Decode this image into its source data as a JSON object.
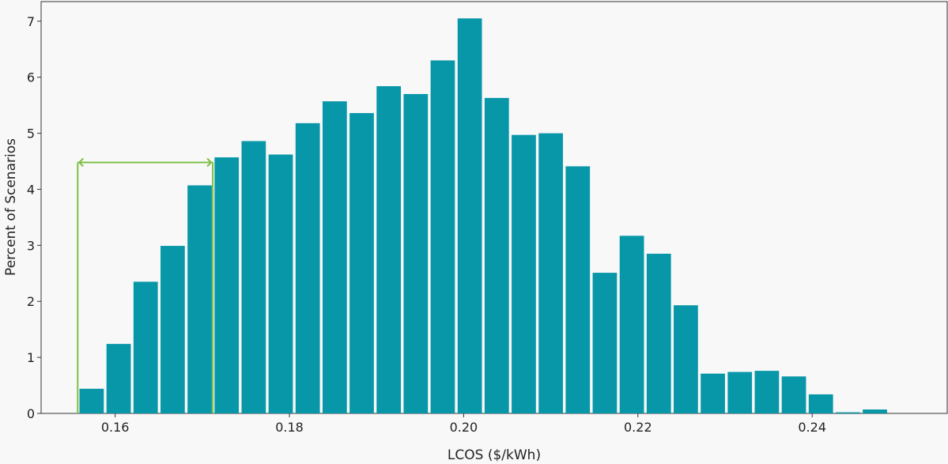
{
  "chart_data": {
    "type": "bar",
    "title": "",
    "xlabel": "LCOS ($/kWh)",
    "ylabel": "Percent of Scenarios",
    "xlim": [
      0.1515,
      0.2555
    ],
    "ylim": [
      0,
      7.35
    ],
    "xticks": [
      0.16,
      0.18,
      0.2,
      0.22,
      0.24
    ],
    "xtick_labels": [
      "0.16",
      "0.18",
      "0.20",
      "0.22",
      "0.24"
    ],
    "yticks": [
      0,
      1,
      2,
      3,
      4,
      5,
      6,
      7
    ],
    "ytick_labels": [
      "0",
      "1",
      "2",
      "3",
      "4",
      "5",
      "6",
      "7"
    ],
    "bin_width": 0.0031,
    "bar_fraction": 0.9,
    "grid": false,
    "bar_color": "#0897a8",
    "bars": [
      {
        "x": 0.1573,
        "value": 0.44
      },
      {
        "x": 0.1604,
        "value": 1.24
      },
      {
        "x": 0.1635,
        "value": 2.35
      },
      {
        "x": 0.1666,
        "value": 2.99
      },
      {
        "x": 0.1697,
        "value": 4.07
      },
      {
        "x": 0.1728,
        "value": 4.57
      },
      {
        "x": 0.1759,
        "value": 4.86
      },
      {
        "x": 0.179,
        "value": 4.62
      },
      {
        "x": 0.1821,
        "value": 5.18
      },
      {
        "x": 0.1852,
        "value": 5.57
      },
      {
        "x": 0.1883,
        "value": 5.36
      },
      {
        "x": 0.1914,
        "value": 5.84
      },
      {
        "x": 0.1945,
        "value": 5.7
      },
      {
        "x": 0.1976,
        "value": 6.3
      },
      {
        "x": 0.2007,
        "value": 7.05
      },
      {
        "x": 0.2038,
        "value": 5.63
      },
      {
        "x": 0.2069,
        "value": 4.97
      },
      {
        "x": 0.21,
        "value": 5.0
      },
      {
        "x": 0.2131,
        "value": 4.41
      },
      {
        "x": 0.2162,
        "value": 2.51
      },
      {
        "x": 0.2193,
        "value": 3.17
      },
      {
        "x": 0.2224,
        "value": 2.85
      },
      {
        "x": 0.2255,
        "value": 1.93
      },
      {
        "x": 0.2286,
        "value": 0.71
      },
      {
        "x": 0.2317,
        "value": 0.74
      },
      {
        "x": 0.2348,
        "value": 0.76
      },
      {
        "x": 0.2379,
        "value": 0.66
      },
      {
        "x": 0.241,
        "value": 0.34
      },
      {
        "x": 0.2441,
        "value": 0.02
      },
      {
        "x": 0.2472,
        "value": 0.07
      }
    ],
    "annotation": {
      "type": "range-bracket",
      "x_start": 0.1557,
      "x_end": 0.1712,
      "y": 4.48,
      "color": "#7dbf46"
    }
  }
}
